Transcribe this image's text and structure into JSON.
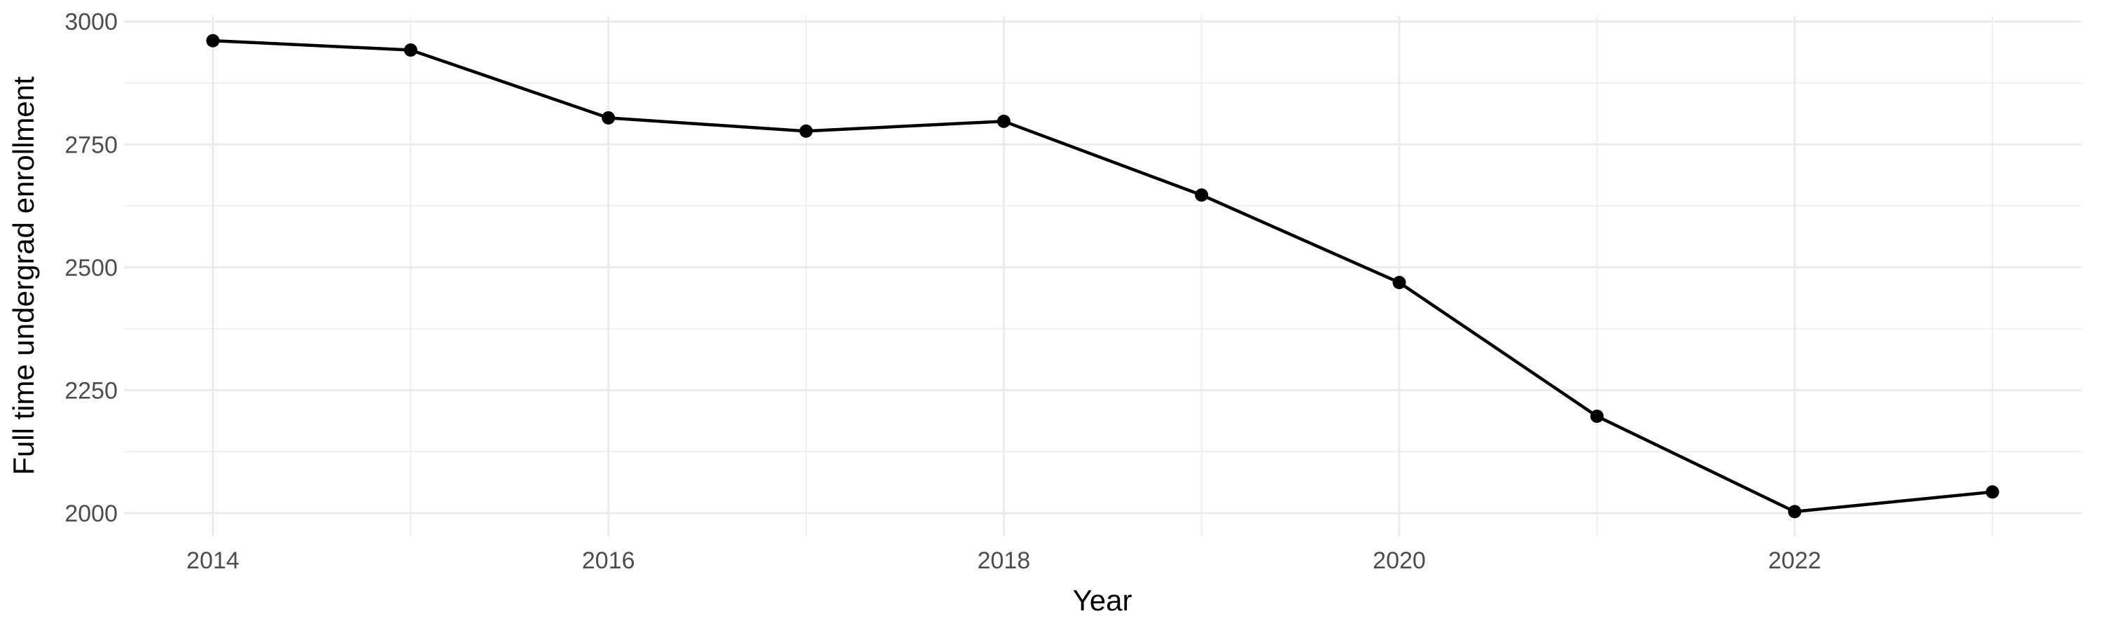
{
  "chart_data": {
    "type": "line",
    "title": "",
    "xlabel": "Year",
    "ylabel": "Full time undergrad enrollment",
    "x": [
      2014,
      2015,
      2016,
      2017,
      2018,
      2019,
      2020,
      2021,
      2022,
      2023
    ],
    "series": [
      {
        "name": "Full time undergrad enrollment",
        "values": [
          2961,
          2942,
          2804,
          2777,
          2797,
          2647,
          2469,
          2197,
          2003,
          2043
        ]
      }
    ],
    "x_major_ticks": [
      2014,
      2016,
      2018,
      2020,
      2022
    ],
    "x_tick_labels": [
      "2014",
      "2016",
      "2018",
      "2020",
      "2022"
    ],
    "x_minor_ticks": [
      2015,
      2017,
      2019,
      2021,
      2023
    ],
    "y_major_ticks": [
      2000,
      2250,
      2500,
      2750,
      3000
    ],
    "y_tick_labels": [
      "2000",
      "2250",
      "2500",
      "2750",
      "3000"
    ],
    "y_minor_ticks": [
      2125,
      2375,
      2625,
      2875
    ],
    "xlim": [
      2013.55,
      2023.45
    ],
    "ylim": [
      1953,
      3011
    ],
    "grid": "major+minor",
    "legend": "none",
    "marker": "filled-circle",
    "colors": {
      "line": "#000000",
      "point": "#000000",
      "grid_major": "#EBEBEB",
      "grid_minor": "#EDEDED",
      "tick_label": "#4D4D4D",
      "axis_title": "#000000",
      "background": "#FFFFFF"
    }
  }
}
